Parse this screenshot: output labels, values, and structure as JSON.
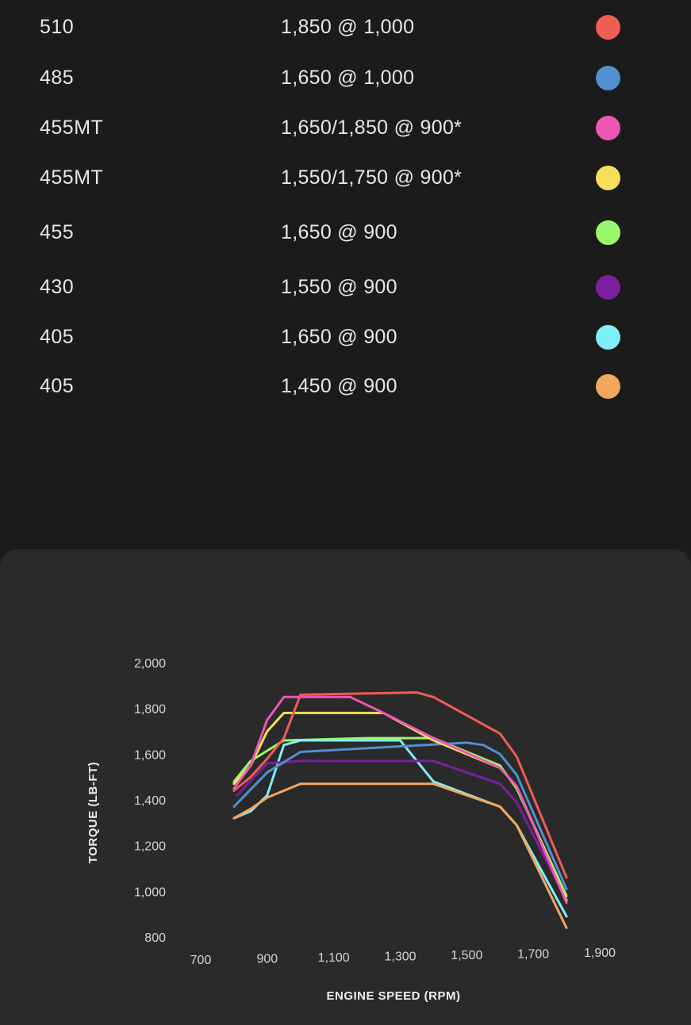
{
  "ratings": [
    {
      "hp": "510",
      "torque": "1,850 @ 1,000",
      "color": "#ef5d54"
    },
    {
      "hp": "485",
      "torque": "1,650 @ 1,000",
      "color": "#5290d0"
    },
    {
      "hp": "455MT",
      "torque": "1,650/1,850 @ 900*",
      "color": "#ec58b4"
    },
    {
      "hp": "455MT",
      "torque": "1,550/1,750 @ 900*",
      "color": "#f6e05a"
    },
    {
      "hp": "455",
      "torque": "1,650 @ 900",
      "color": "#9af66a"
    },
    {
      "hp": "430",
      "torque": "1,550 @ 900",
      "color": "#7a1fa0"
    },
    {
      "hp": "405",
      "torque": "1,650 @ 900",
      "color": "#7eeff7"
    },
    {
      "hp": "405",
      "torque": "1,450 @ 900",
      "color": "#f2a75e"
    }
  ],
  "chart_data": {
    "type": "line",
    "xlabel": "ENGINE SPEED (RPM)",
    "ylabel": "TORQUE (LB-FT)",
    "xlim": [
      700,
      1900
    ],
    "ylim": [
      800,
      2000
    ],
    "x_ticks": [
      "700",
      "900",
      "1,100",
      "1,300",
      "1,500",
      "1,700",
      "1,900"
    ],
    "y_ticks": [
      "2,000",
      "1,800",
      "1,600",
      "1,400",
      "1,200",
      "1,000",
      "800"
    ],
    "grid": false,
    "series": [
      {
        "color": "#9af66a",
        "x": [
          800,
          850,
          950,
          1200,
          1400,
          1600,
          1650,
          1800
        ],
        "y": [
          1480,
          1570,
          1660,
          1670,
          1670,
          1550,
          1450,
          980
        ]
      },
      {
        "color": "#7eeff7",
        "x": [
          800,
          850,
          900,
          950,
          1000,
          1300,
          1400,
          1600,
          1650,
          1800
        ],
        "y": [
          1320,
          1350,
          1420,
          1640,
          1660,
          1660,
          1480,
          1370,
          1290,
          890
        ]
      },
      {
        "color": "#7a1fa0",
        "x": [
          810,
          860,
          900,
          1000,
          1400,
          1600,
          1650,
          1800
        ],
        "y": [
          1420,
          1500,
          1560,
          1570,
          1570,
          1470,
          1390,
          960
        ]
      },
      {
        "color": "#5290d0",
        "x": [
          800,
          900,
          1000,
          1500,
          1550,
          1600,
          1650,
          1800
        ],
        "y": [
          1370,
          1520,
          1610,
          1650,
          1640,
          1600,
          1510,
          1010
        ]
      },
      {
        "color": "#f2a75e",
        "x": [
          800,
          850,
          900,
          1000,
          1400,
          1600,
          1650,
          1800
        ],
        "y": [
          1320,
          1360,
          1410,
          1470,
          1470,
          1370,
          1290,
          840
        ]
      },
      {
        "color": "#f6e05a",
        "x": [
          800,
          850,
          900,
          950,
          1000,
          1250,
          1400,
          1600,
          1650,
          1800
        ],
        "y": [
          1470,
          1550,
          1700,
          1780,
          1780,
          1780,
          1660,
          1540,
          1460,
          960
        ]
      },
      {
        "color": "#ec58b4",
        "x": [
          800,
          850,
          900,
          950,
          1000,
          1150,
          1250,
          1400,
          1600,
          1650,
          1800
        ],
        "y": [
          1450,
          1550,
          1750,
          1850,
          1850,
          1850,
          1780,
          1670,
          1540,
          1460,
          950
        ]
      },
      {
        "color": "#ef5d54",
        "x": [
          800,
          850,
          900,
          950,
          1000,
          1350,
          1400,
          1600,
          1650,
          1800
        ],
        "y": [
          1440,
          1500,
          1580,
          1670,
          1860,
          1870,
          1850,
          1690,
          1590,
          1060
        ]
      }
    ]
  }
}
